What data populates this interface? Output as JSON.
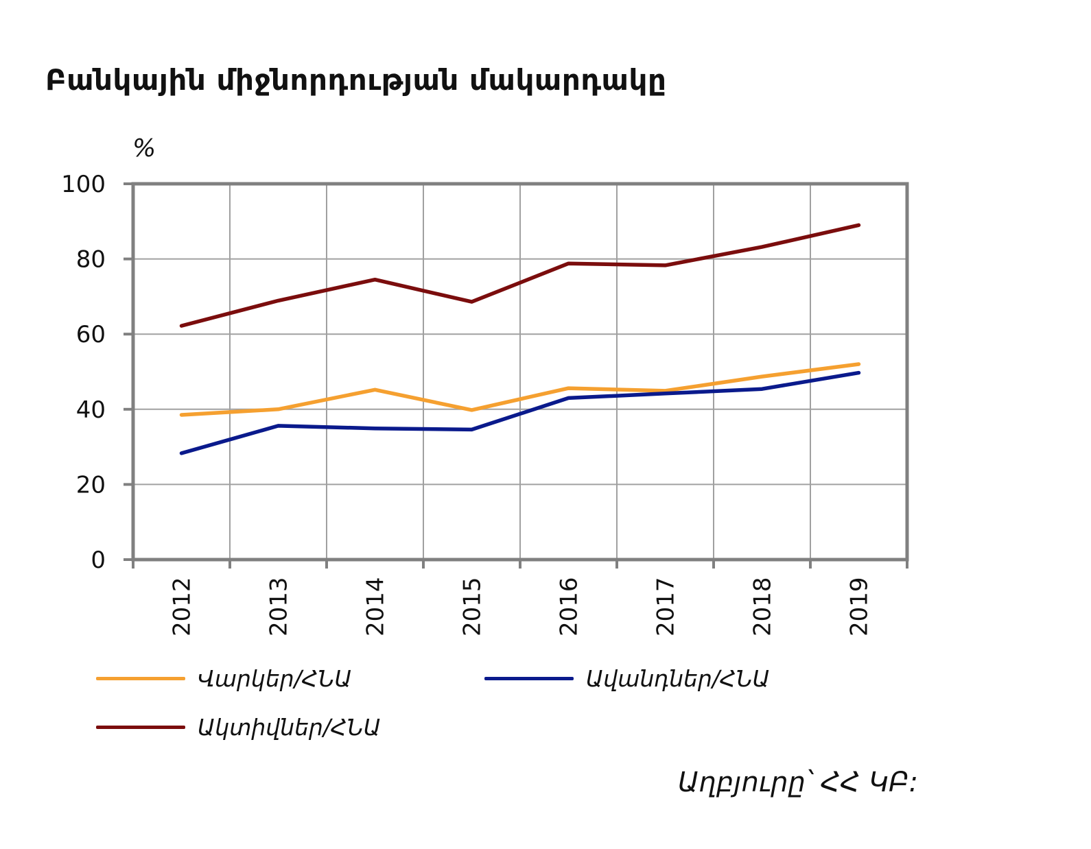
{
  "title": "Բանկային միջնորդության մակարդակը",
  "unit": "%",
  "source": "Աղբյուրը՝ ՀՀ ԿԲ:",
  "colors": {
    "loans": "#F5A030",
    "deposits": "#0A1A8C",
    "assets": "#7B0D0D",
    "grid": "#A0A0A0",
    "axis": "#808080"
  },
  "chart_data": {
    "type": "line",
    "categories": [
      "2012",
      "2013",
      "2014",
      "2015",
      "2016",
      "2017",
      "2018",
      "2019"
    ],
    "yticks": [
      "0",
      "20",
      "40",
      "60",
      "80",
      "100"
    ],
    "ylim": [
      0,
      100
    ],
    "grid": true,
    "legend_placement": "bottom",
    "series": [
      {
        "key": "loans",
        "name": "Վարկեր/ՀՆԱ",
        "values": [
          38.5,
          40.0,
          45.2,
          39.8,
          45.6,
          44.9,
          48.7,
          52.0
        ]
      },
      {
        "key": "deposits",
        "name": "Ավանդներ/ՀՆԱ",
        "values": [
          28.3,
          35.6,
          34.9,
          34.6,
          43.0,
          44.2,
          45.4,
          49.7
        ]
      },
      {
        "key": "assets",
        "name": "Ակտիվներ/ՀՆԱ",
        "values": [
          62.2,
          68.9,
          74.5,
          68.6,
          78.8,
          78.3,
          83.2,
          89.0
        ]
      }
    ]
  }
}
